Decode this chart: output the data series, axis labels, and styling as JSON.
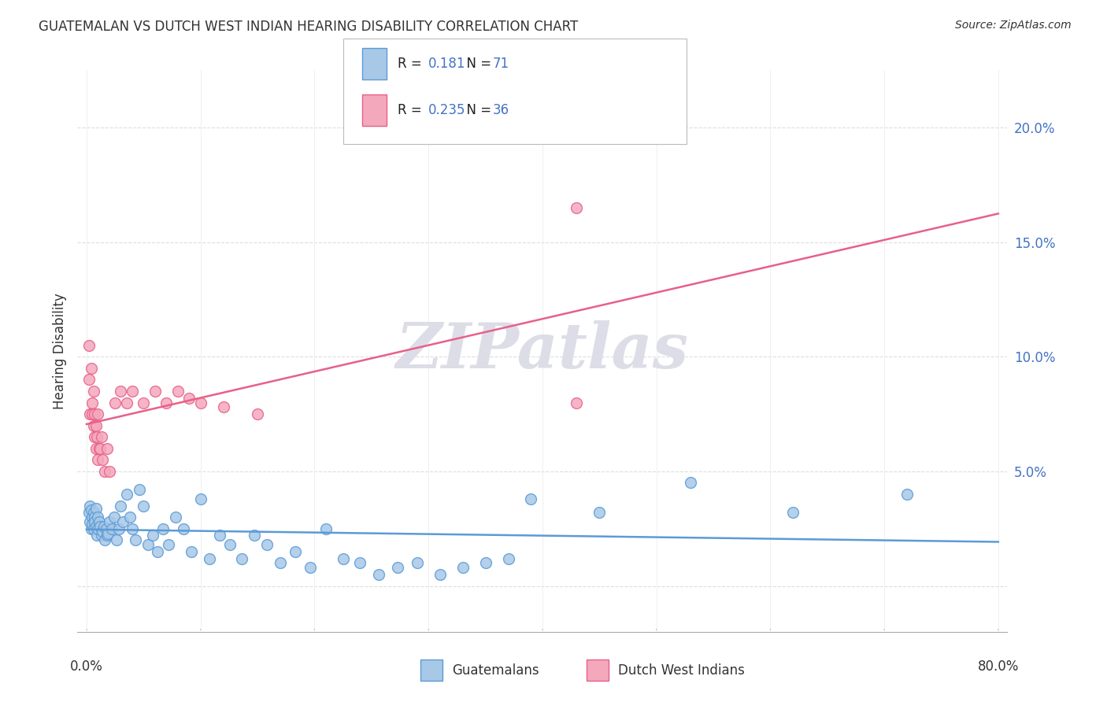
{
  "title": "GUATEMALAN VS DUTCH WEST INDIAN HEARING DISABILITY CORRELATION CHART",
  "source": "Source: ZipAtlas.com",
  "ylabel": "Hearing Disability",
  "xlim": [
    0.0,
    0.8
  ],
  "ylim": [
    0.0,
    0.22
  ],
  "yticks": [
    0.0,
    0.05,
    0.1,
    0.15,
    0.2
  ],
  "ytick_labels": [
    "",
    "5.0%",
    "10.0%",
    "15.0%",
    "20.0%"
  ],
  "blue_R": "0.181",
  "blue_N": "71",
  "pink_R": "0.235",
  "pink_N": "36",
  "blue_color": "#A8C8E8",
  "pink_color": "#F4A8BC",
  "blue_edge_color": "#5B9BD5",
  "pink_edge_color": "#E8608A",
  "blue_line_color": "#5B9BD5",
  "pink_line_color": "#E8608A",
  "legend_label_blue": "Guatemalans",
  "legend_label_pink": "Dutch West Indians",
  "watermark_color": "#DDDDE8",
  "background_color": "#FFFFFF",
  "grid_color": "#DDDDDD",
  "text_color": "#333333",
  "blue_tick_color": "#4472C4",
  "blue_x": [
    0.002,
    0.003,
    0.003,
    0.004,
    0.004,
    0.005,
    0.005,
    0.006,
    0.006,
    0.007,
    0.007,
    0.008,
    0.008,
    0.009,
    0.01,
    0.01,
    0.011,
    0.012,
    0.013,
    0.014,
    0.015,
    0.016,
    0.017,
    0.018,
    0.019,
    0.02,
    0.022,
    0.024,
    0.026,
    0.028,
    0.03,
    0.032,
    0.035,
    0.038,
    0.04,
    0.043,
    0.046,
    0.05,
    0.054,
    0.058,
    0.062,
    0.067,
    0.072,
    0.078,
    0.085,
    0.092,
    0.1,
    0.108,
    0.117,
    0.126,
    0.136,
    0.147,
    0.158,
    0.17,
    0.183,
    0.196,
    0.21,
    0.225,
    0.24,
    0.256,
    0.273,
    0.29,
    0.31,
    0.33,
    0.35,
    0.37,
    0.39,
    0.45,
    0.53,
    0.62,
    0.72
  ],
  "blue_y": [
    0.032,
    0.028,
    0.035,
    0.025,
    0.033,
    0.03,
    0.027,
    0.032,
    0.025,
    0.03,
    0.028,
    0.026,
    0.034,
    0.022,
    0.03,
    0.025,
    0.028,
    0.026,
    0.022,
    0.024,
    0.026,
    0.02,
    0.025,
    0.022,
    0.023,
    0.028,
    0.025,
    0.03,
    0.02,
    0.025,
    0.035,
    0.028,
    0.04,
    0.03,
    0.025,
    0.02,
    0.042,
    0.035,
    0.018,
    0.022,
    0.015,
    0.025,
    0.018,
    0.03,
    0.025,
    0.015,
    0.038,
    0.012,
    0.022,
    0.018,
    0.012,
    0.022,
    0.018,
    0.01,
    0.015,
    0.008,
    0.025,
    0.012,
    0.01,
    0.005,
    0.008,
    0.01,
    0.005,
    0.008,
    0.01,
    0.012,
    0.038,
    0.032,
    0.045,
    0.032,
    0.04
  ],
  "pink_x": [
    0.002,
    0.002,
    0.003,
    0.004,
    0.005,
    0.005,
    0.006,
    0.006,
    0.007,
    0.007,
    0.008,
    0.008,
    0.009,
    0.01,
    0.01,
    0.011,
    0.012,
    0.013,
    0.014,
    0.016,
    0.018,
    0.02,
    0.025,
    0.03,
    0.035,
    0.04,
    0.05,
    0.06,
    0.07,
    0.08,
    0.09,
    0.1,
    0.12,
    0.15,
    0.43,
    0.43
  ],
  "pink_y": [
    0.105,
    0.09,
    0.075,
    0.095,
    0.08,
    0.075,
    0.07,
    0.085,
    0.065,
    0.075,
    0.06,
    0.07,
    0.065,
    0.055,
    0.075,
    0.06,
    0.06,
    0.065,
    0.055,
    0.05,
    0.06,
    0.05,
    0.08,
    0.085,
    0.08,
    0.085,
    0.08,
    0.085,
    0.08,
    0.085,
    0.082,
    0.08,
    0.078,
    0.075,
    0.165,
    0.08
  ]
}
